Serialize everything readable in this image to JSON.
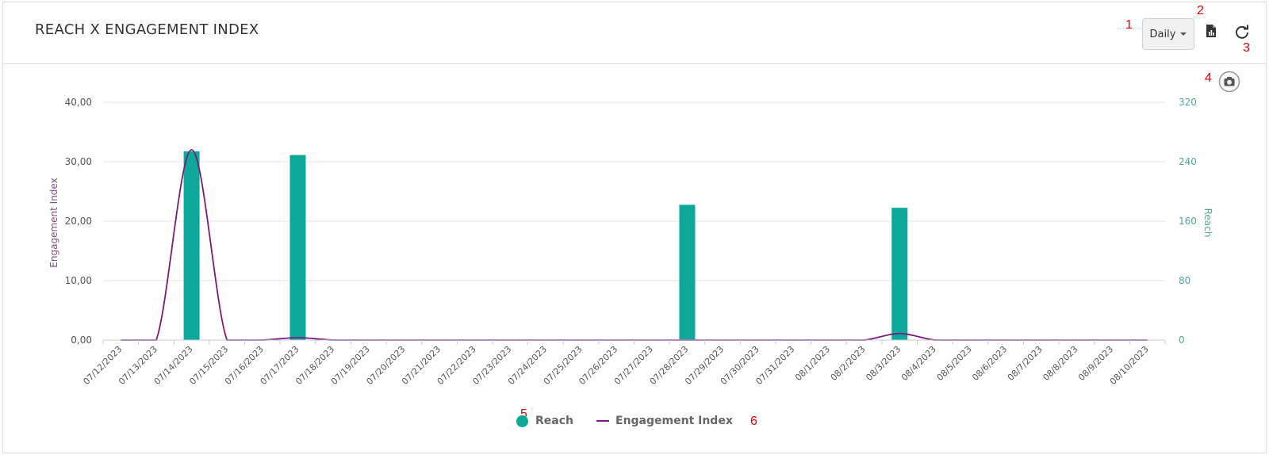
{
  "header": {
    "title": "REACH X ENGAGEMENT INDEX",
    "period_label": "Daily",
    "icons": [
      "export-icon",
      "refresh-icon",
      "camera-icon"
    ]
  },
  "annotations": [
    "1",
    "2",
    "3",
    "4",
    "5",
    "6"
  ],
  "colors": {
    "reach": "#0ea89a",
    "engagement": "#7b1a7b",
    "grid": "#e6e6e6",
    "right_axis": "#4aa7a0"
  },
  "chart_data": {
    "type": "bar",
    "categories": [
      "07/12/2023",
      "07/13/2023",
      "07/14/2023",
      "07/15/2023",
      "07/16/2023",
      "07/17/2023",
      "07/18/2023",
      "07/19/2023",
      "07/20/2023",
      "07/21/2023",
      "07/22/2023",
      "07/23/2023",
      "07/24/2023",
      "07/25/2023",
      "07/26/2023",
      "07/27/2023",
      "07/28/2023",
      "07/29/2023",
      "07/30/2023",
      "07/31/2023",
      "08/1/2023",
      "08/2/2023",
      "08/3/2023",
      "08/4/2023",
      "08/5/2023",
      "08/6/2023",
      "08/7/2023",
      "08/8/2023",
      "08/9/2023",
      "08/10/2023"
    ],
    "series": [
      {
        "name": "Reach",
        "type": "bar",
        "axis": "right",
        "values": [
          0,
          0,
          254,
          0,
          0,
          249,
          0,
          0,
          0,
          0,
          0,
          0,
          0,
          0,
          0,
          0,
          182,
          0,
          0,
          0,
          0,
          0,
          178,
          0,
          0,
          0,
          0,
          0,
          0,
          0
        ]
      },
      {
        "name": "Engagement Index",
        "type": "line",
        "axis": "left",
        "values": [
          0,
          0,
          32,
          0,
          0,
          0.4,
          0,
          0,
          0,
          0,
          0,
          0,
          0,
          0,
          0,
          0,
          0,
          0,
          0,
          0,
          0,
          0,
          1.1,
          0,
          0,
          0,
          0,
          0,
          0,
          0
        ]
      }
    ],
    "left_axis": {
      "label": "Engagement Index",
      "ticks": [
        "0,00",
        "10,00",
        "20,00",
        "30,00",
        "40,00"
      ],
      "range": [
        0,
        40
      ]
    },
    "right_axis": {
      "label": "Reach",
      "ticks": [
        "0",
        "80",
        "160",
        "240",
        "320"
      ],
      "range": [
        0,
        320
      ]
    },
    "legend": {
      "position": "bottom-center",
      "items": [
        "Reach",
        "Engagement Index"
      ]
    },
    "grid": true
  }
}
